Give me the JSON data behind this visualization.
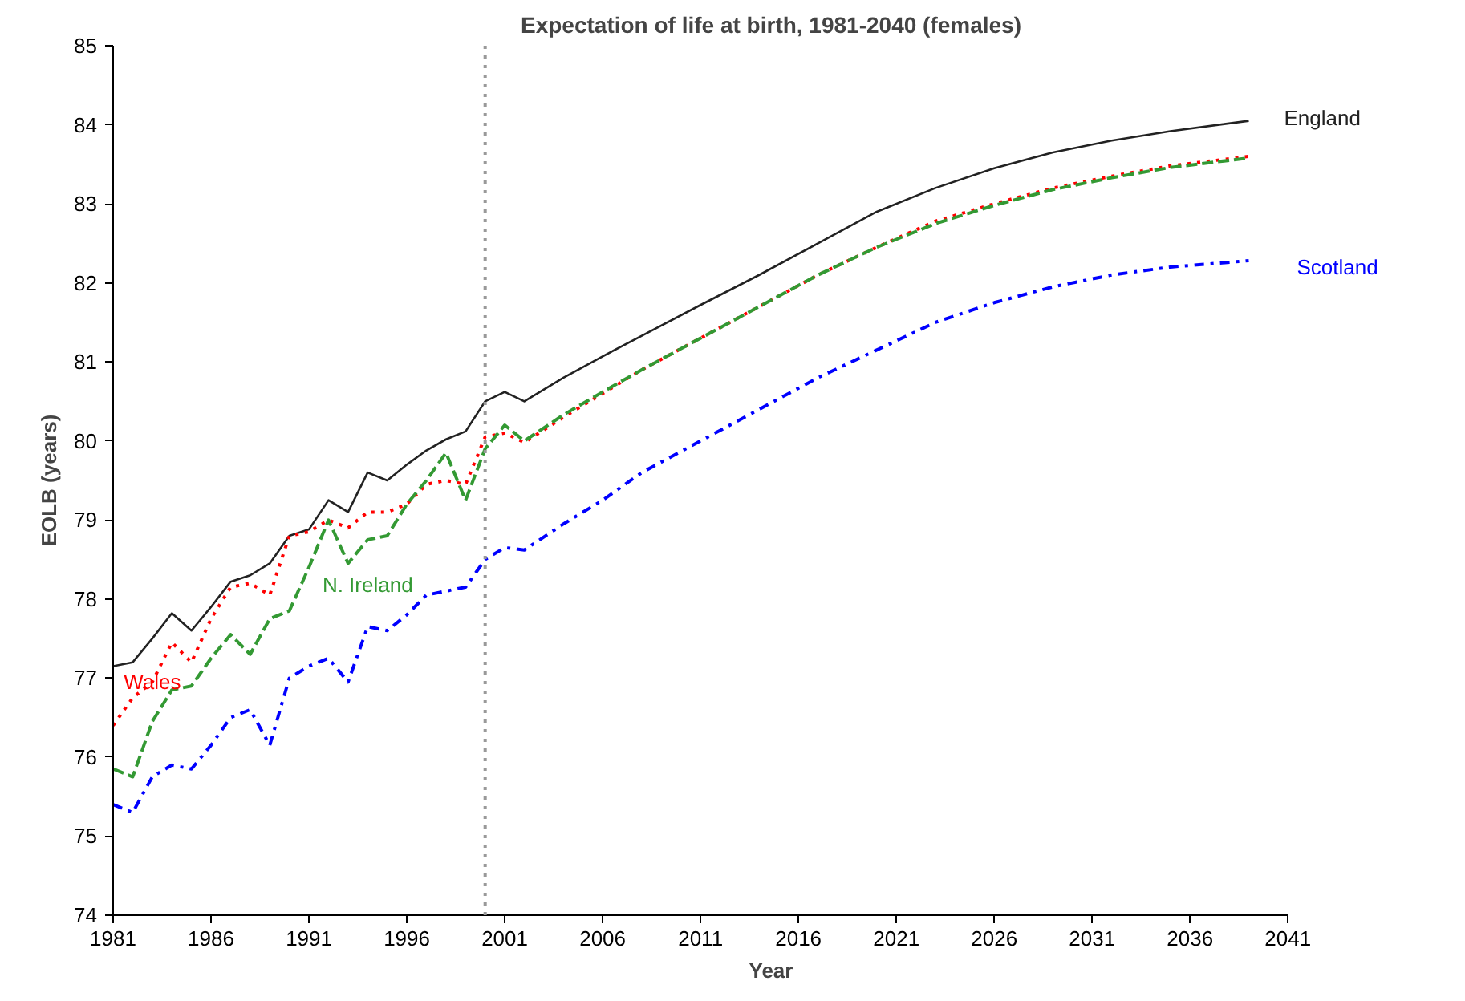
{
  "chart_data": {
    "type": "line",
    "title": "Expectation of life at birth, 1981-2040 (females)",
    "xlabel": "Year",
    "ylabel": "EOLB (years)",
    "x": [
      1981,
      1982,
      1983,
      1984,
      1985,
      1986,
      1987,
      1988,
      1989,
      1990,
      1991,
      1992,
      1993,
      1994,
      1995,
      1996,
      1997,
      1998,
      1999,
      2000,
      2001,
      2002,
      2004,
      2006,
      2008,
      2011,
      2014,
      2017,
      2020,
      2023,
      2026,
      2029,
      2032,
      2035,
      2039
    ],
    "series": [
      {
        "color": "#222222",
        "line_style": "solid",
        "values": [
          77.15,
          77.2,
          77.5,
          77.82,
          77.6,
          77.9,
          78.22,
          78.3,
          78.45,
          78.8,
          78.88,
          79.25,
          79.1,
          79.6,
          79.5,
          79.7,
          79.88,
          80.02,
          80.12,
          80.5,
          80.62,
          80.5,
          80.8,
          81.07,
          81.33,
          81.72,
          82.1,
          82.5,
          82.9,
          83.2,
          83.45,
          83.65,
          83.8,
          83.92,
          84.05
        ]
      },
      {
        "color": "#ff0000",
        "line_style": "dotted",
        "values": [
          76.4,
          76.75,
          76.95,
          77.45,
          77.2,
          77.75,
          78.15,
          78.2,
          78.05,
          78.8,
          78.85,
          79.0,
          78.9,
          79.1,
          79.1,
          79.2,
          79.45,
          79.5,
          79.45,
          80.05,
          80.1,
          79.98,
          80.3,
          80.6,
          80.9,
          81.3,
          81.7,
          82.1,
          82.45,
          82.78,
          83.0,
          83.2,
          83.35,
          83.48,
          83.6
        ]
      },
      {
        "color": "#339933",
        "line_style": "dashed",
        "values": [
          75.85,
          75.75,
          76.45,
          76.85,
          76.9,
          77.25,
          77.55,
          77.3,
          77.75,
          77.85,
          78.4,
          79.0,
          78.45,
          78.75,
          78.8,
          79.2,
          79.5,
          79.85,
          79.25,
          79.9,
          80.2,
          80.0,
          80.33,
          80.62,
          80.9,
          81.3,
          81.7,
          82.1,
          82.45,
          82.75,
          82.98,
          83.18,
          83.33,
          83.46,
          83.58
        ]
      },
      {
        "color": "#0000ff",
        "line_style": "dashdot",
        "values": [
          75.4,
          75.3,
          75.75,
          75.9,
          75.85,
          76.15,
          76.5,
          76.6,
          76.15,
          77.0,
          77.15,
          77.25,
          76.95,
          77.65,
          77.6,
          77.8,
          78.05,
          78.1,
          78.15,
          78.5,
          78.65,
          78.62,
          78.95,
          79.25,
          79.6,
          80.0,
          80.4,
          80.8,
          81.15,
          81.5,
          81.75,
          81.95,
          82.1,
          82.2,
          82.28
        ]
      }
    ],
    "annotations": [
      {
        "text": "England",
        "x": 2039,
        "y": 84.05
      },
      {
        "text": "Wales",
        "x": 1983,
        "y": 76.95
      },
      {
        "text": "N. Ireland",
        "x": 1994,
        "y": 78.75
      },
      {
        "text": "Scotland",
        "x": 2039,
        "y": 82.28
      }
    ],
    "ref_lines": [
      {
        "axis": "x",
        "value": 2000,
        "color": "#999999",
        "line_style": "dotted"
      }
    ],
    "xlim": [
      1981,
      2041
    ],
    "xticks": [
      1981,
      1986,
      1991,
      1996,
      2001,
      2006,
      2011,
      2016,
      2021,
      2026,
      2031,
      2036,
      2041
    ],
    "ylim": [
      74,
      85
    ],
    "yticks": [
      74,
      75,
      76,
      77,
      78,
      79,
      80,
      81,
      82,
      83,
      84,
      85
    ],
    "grid": false
  }
}
